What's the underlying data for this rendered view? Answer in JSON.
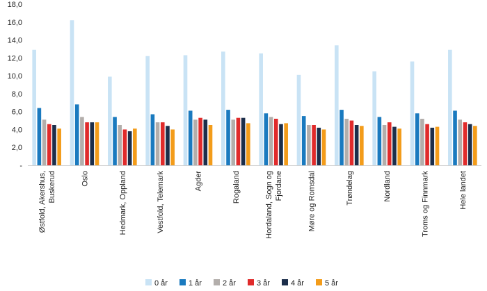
{
  "chart_data": {
    "type": "bar",
    "title": "",
    "xlabel": "",
    "ylabel": "",
    "ylim": [
      0,
      18
    ],
    "y_ticks": [
      "-",
      "2,0",
      "4,0",
      "6,0",
      "8,0",
      "10,0",
      "12,0",
      "14,0",
      "16,0",
      "18,0"
    ],
    "grid": false,
    "legend_position": "bottom",
    "categories": [
      [
        "Østfold, Akershus,",
        "Buskerud"
      ],
      [
        "Oslo"
      ],
      [
        "Hedmark, Oppland"
      ],
      [
        "Vestfold, Telemark"
      ],
      [
        "Agder"
      ],
      [
        "Rogaland"
      ],
      [
        "Hordaland, Sogn og",
        "Fjordane"
      ],
      [
        "Møre og Romsdal"
      ],
      [
        "Trøndelag"
      ],
      [
        "Nordland"
      ],
      [
        "Troms og Finnmark"
      ],
      [
        "Hele landet"
      ]
    ],
    "series": [
      {
        "name": "0 år",
        "color": "#c9e3f5",
        "values": [
          12.9,
          16.2,
          9.9,
          12.2,
          12.3,
          12.7,
          12.5,
          10.1,
          13.4,
          10.5,
          11.6,
          12.9
        ]
      },
      {
        "name": "1 år",
        "color": "#1a7abf",
        "values": [
          6.4,
          6.8,
          5.4,
          5.7,
          6.1,
          6.2,
          5.8,
          5.5,
          6.2,
          5.4,
          5.8,
          6.1
        ]
      },
      {
        "name": "2 år",
        "color": "#b3aeab",
        "values": [
          5.1,
          5.4,
          4.5,
          4.8,
          5.1,
          5.1,
          5.4,
          4.5,
          5.2,
          4.5,
          5.2,
          5.1
        ]
      },
      {
        "name": "3 år",
        "color": "#e02b2b",
        "values": [
          4.6,
          4.8,
          4.0,
          4.8,
          5.3,
          5.3,
          5.2,
          4.5,
          5.0,
          4.8,
          4.6,
          4.8
        ]
      },
      {
        "name": "4 år",
        "color": "#1c2e4a",
        "values": [
          4.5,
          4.8,
          3.8,
          4.4,
          5.1,
          5.3,
          4.6,
          4.2,
          4.5,
          4.3,
          4.2,
          4.6
        ]
      },
      {
        "name": "5 år",
        "color": "#f39c1a",
        "values": [
          4.1,
          4.8,
          4.1,
          4.0,
          4.5,
          4.7,
          4.7,
          4.0,
          4.4,
          4.1,
          4.3,
          4.4
        ]
      }
    ]
  }
}
